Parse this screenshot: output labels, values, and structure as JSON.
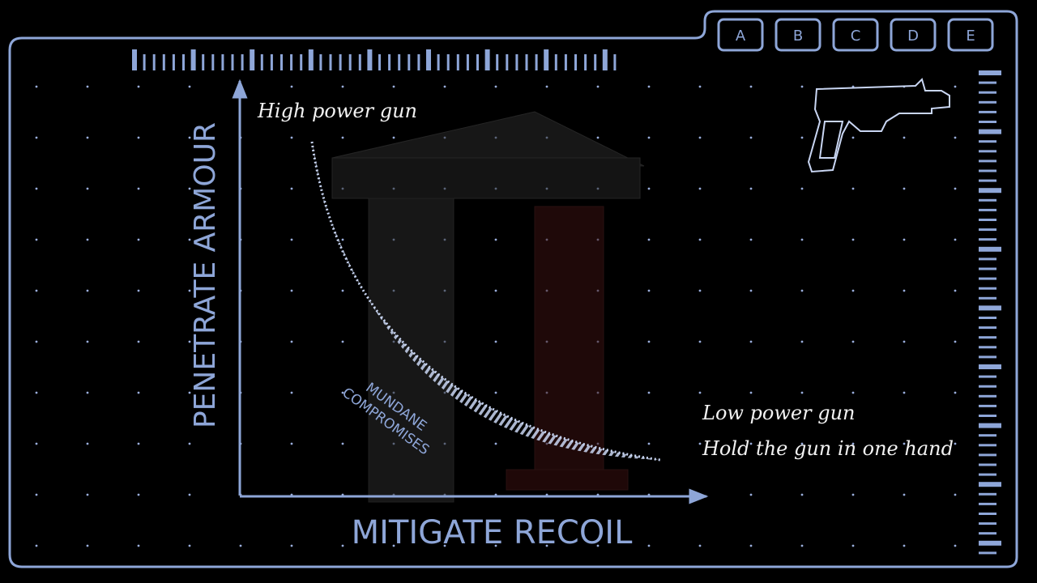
{
  "tabs": [
    "A",
    "B",
    "C",
    "D",
    "E"
  ],
  "diagram": {
    "y_axis_label": "PENETRATE ARMOUR",
    "x_axis_label": "MITIGATE RECOIL",
    "curve_start_label": "High power gun",
    "curve_end_labels": [
      "Low power gun",
      "Hold the gun in one hand"
    ],
    "band_labels": [
      "MUNDANE",
      "COMPROMISES"
    ]
  }
}
